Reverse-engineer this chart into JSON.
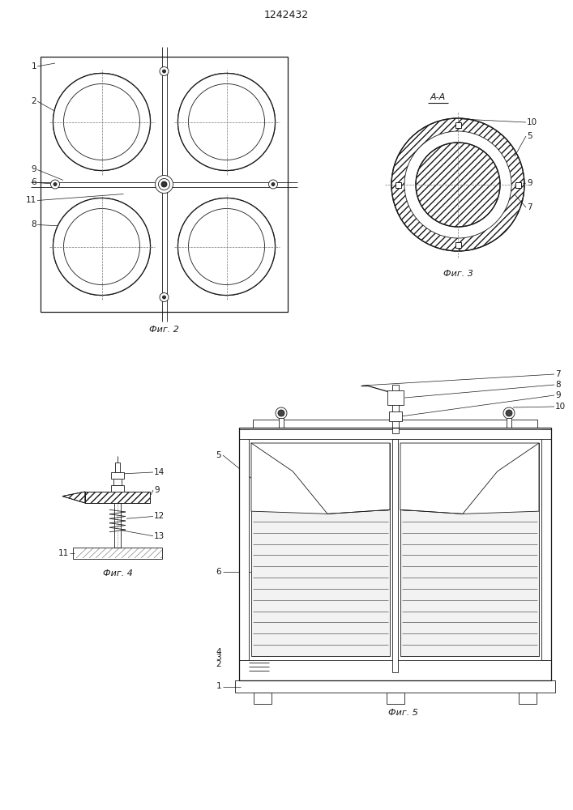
{
  "title": "1242432",
  "fig2_label": "Фиг. 2",
  "fig3_label": "Фиг. 3",
  "fig4_label": "Фиг. 4",
  "fig5_label": "Фиг. 5",
  "fig3_aa_label": "А-А",
  "bg_color": "#ffffff",
  "line_color": "#1a1a1a",
  "font_size_title": 9,
  "font_size_label": 8,
  "font_size_number": 7.5
}
